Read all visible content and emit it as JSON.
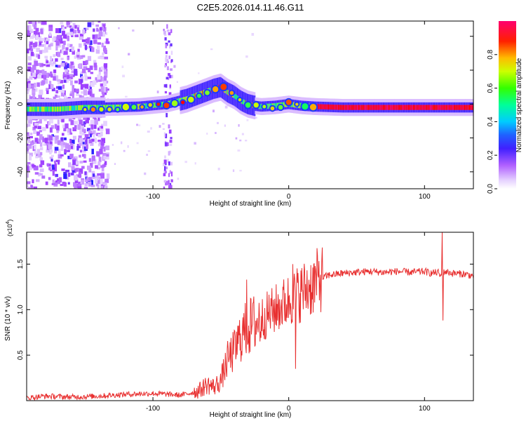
{
  "title": "C2E5.2026.014.11.46.G11",
  "chart_data": [
    {
      "type": "heatmap",
      "xlabel": "Height of straight line (km)",
      "ylabel": "Frequency (Hz)",
      "xlim": [
        -193,
        136
      ],
      "ylim": [
        -50,
        49
      ],
      "xticks": [
        -100,
        0,
        100
      ],
      "xtick_labels": [
        "-100",
        "0",
        "100"
      ],
      "yticks": [
        -40,
        -20,
        0,
        20,
        40
      ],
      "ytick_labels": [
        "-40",
        "-20",
        "0",
        "20",
        "40"
      ],
      "colorbar": {
        "label": "Normalized spectral amplitude",
        "range": [
          0,
          1
        ],
        "ticks": [
          0.0,
          0.2,
          0.4,
          0.6,
          0.8
        ],
        "tick_labels": [
          "0.0",
          "0.2",
          "0.4",
          "0.6",
          "0.8"
        ],
        "colormap": [
          "#ffffff",
          "#e0c8ff",
          "#a040ff",
          "#2020ff",
          "#00ccff",
          "#00ff66",
          "#ccff00",
          "#ffaa00",
          "#ff0000",
          "#ff0070"
        ]
      },
      "ridge": {
        "x": [
          -193,
          -170,
          -150,
          -135,
          -110,
          -90,
          -75,
          -65,
          -55,
          -50,
          -45,
          -40,
          -35,
          -30,
          -25,
          -20,
          -10,
          0,
          10,
          20,
          40,
          80,
          110,
          136
        ],
        "freq": [
          -3,
          -3,
          -2,
          -2,
          -1.5,
          0,
          3,
          6,
          9,
          10,
          7,
          5,
          2,
          0,
          -1,
          -1.5,
          -1,
          0,
          -1,
          -1.5,
          -2,
          -2,
          -2,
          -2
        ]
      }
    },
    {
      "type": "line",
      "xlabel": "Height of straight line (km)",
      "ylabel": "SNR (10 * v/v)",
      "y_scale_label": "(x10",
      "y_scale_exp": "4",
      "xlim": [
        -193,
        136
      ],
      "ylim": [
        0,
        1.85
      ],
      "xticks": [
        -100,
        0,
        100
      ],
      "xtick_labels": [
        "-100",
        "0",
        "100"
      ],
      "yticks": [
        0.5,
        1.0,
        1.5
      ],
      "ytick_labels": [
        "0.5",
        "1.0",
        "1.5"
      ],
      "series_color": "#e83030",
      "series": [
        {
          "name": "SNR",
          "x": [
            -193,
            -180,
            -160,
            -140,
            -120,
            -100,
            -90,
            -80,
            -70,
            -65,
            -60,
            -55,
            -50,
            -45,
            -40,
            -35,
            -30,
            -25,
            -20,
            -15,
            -10,
            -5,
            0,
            5,
            10,
            15,
            20,
            25,
            30,
            40,
            50,
            60,
            70,
            80,
            90,
            100,
            105,
            110,
            112,
            115,
            120,
            130,
            136
          ],
          "y": [
            0.03,
            0.05,
            0.04,
            0.05,
            0.07,
            0.08,
            0.07,
            0.06,
            0.09,
            0.12,
            0.18,
            0.15,
            0.22,
            0.45,
            0.55,
            0.72,
            0.8,
            0.85,
            0.9,
            0.95,
            1.0,
            1.05,
            1.1,
            1.15,
            1.2,
            1.25,
            1.3,
            1.35,
            1.38,
            1.4,
            1.41,
            1.42,
            1.41,
            1.42,
            1.41,
            1.42,
            1.4,
            1.41,
            1.36,
            1.42,
            1.4,
            1.39,
            1.37
          ]
        }
      ],
      "spikes": [
        {
          "x": -31,
          "y": 1.33
        },
        {
          "x": 3,
          "y": 1.5
        },
        {
          "x": 5,
          "y": 0.35
        },
        {
          "x": 113,
          "y": 1.85
        },
        {
          "x": 113.6,
          "y": 0.88
        }
      ]
    }
  ]
}
